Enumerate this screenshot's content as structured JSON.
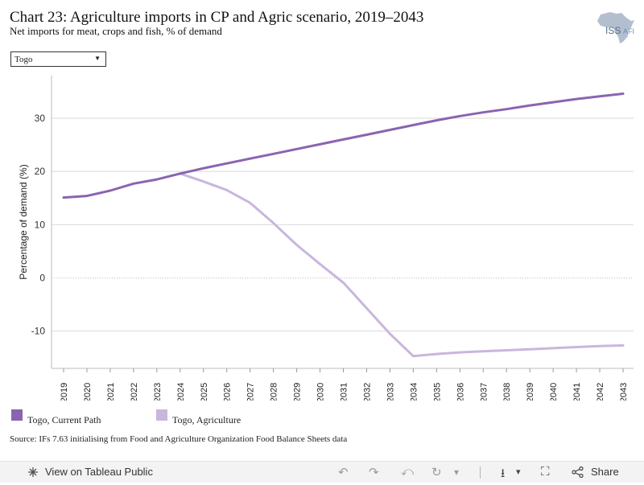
{
  "header": {
    "title": "Chart 23: Agriculture imports in CP and Agric scenario, 2019–2043",
    "subtitle": "Net imports for meat, crops and fish, % of demand",
    "logo_text": "ISS",
    "logo_suffix": "AFI"
  },
  "filter": {
    "selected": "Togo",
    "caret": "▼"
  },
  "chart_data": {
    "type": "line",
    "title": "Chart 23: Agriculture imports in CP and Agric scenario, 2019–2043",
    "subtitle": "Net imports for meat, crops and fish, % of demand",
    "xlabel": "",
    "ylabel": "Percentage of demand (%)",
    "x": [
      "2019",
      "2020",
      "2021",
      "2022",
      "2023",
      "2024",
      "2025",
      "2026",
      "2027",
      "2028",
      "2029",
      "2030",
      "2031",
      "2032",
      "2033",
      "2034",
      "2035",
      "2036",
      "2037",
      "2038",
      "2039",
      "2040",
      "2041",
      "2042",
      "2043"
    ],
    "ylim": [
      -17,
      38
    ],
    "yticks": [
      -10,
      0,
      10,
      20,
      30
    ],
    "grid": true,
    "zero_line_dotted": true,
    "legend_position": "bottom-left",
    "series": [
      {
        "name": "Togo, Current Path",
        "color": "#8a64b0",
        "values": [
          15.1,
          15.4,
          16.4,
          17.7,
          18.5,
          19.6,
          20.6,
          21.5,
          22.4,
          23.3,
          24.2,
          25.1,
          26.0,
          26.9,
          27.8,
          28.7,
          29.6,
          30.4,
          31.1,
          31.7,
          32.4,
          33.0,
          33.6,
          34.1,
          34.6
        ]
      },
      {
        "name": "Togo, Agriculture",
        "color": "#c9b6dd",
        "values": [
          null,
          null,
          null,
          null,
          null,
          19.6,
          18.1,
          16.5,
          14.1,
          10.3,
          6.2,
          2.6,
          -0.9,
          -5.7,
          -10.5,
          -14.7,
          -14.3,
          -14.0,
          -13.8,
          -13.6,
          -13.4,
          -13.2,
          -13.0,
          -12.8,
          -12.7
        ]
      }
    ]
  },
  "source": "Source: IFs 7.63 initialising from Food and Agriculture Organization Food Balance Sheets data",
  "toolbar": {
    "view_label": "View on Tableau Public",
    "share_label": "Share",
    "undo": "↶",
    "redo": "↷",
    "revert": "⤺",
    "refresh": "↻",
    "pause_caret": "▾",
    "download": "⭳",
    "fullscreen": "⛶"
  }
}
